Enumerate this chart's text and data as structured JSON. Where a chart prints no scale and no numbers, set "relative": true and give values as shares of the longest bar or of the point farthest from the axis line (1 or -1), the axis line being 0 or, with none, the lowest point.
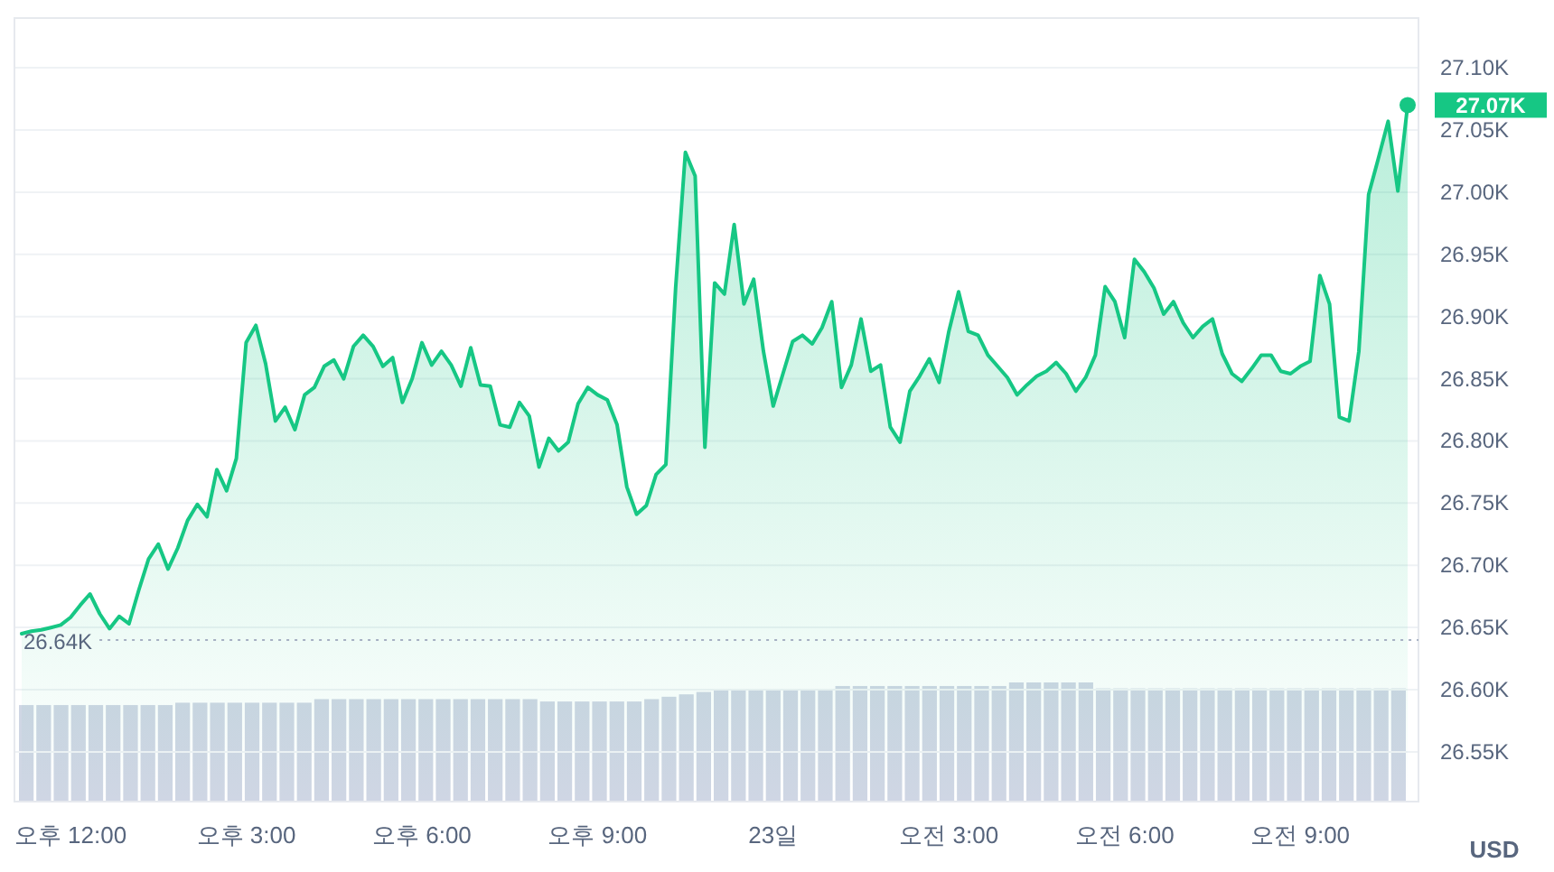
{
  "chart_data": [
    {
      "type": "area",
      "ylabel": "USD",
      "grid": "y",
      "categories": [
        null,
        null,
        null,
        null,
        null,
        "오후 12:00",
        null,
        null,
        null,
        null,
        null,
        null,
        null,
        null,
        null,
        null,
        null,
        null,
        null,
        null,
        null,
        null,
        null,
        "오후 3:00",
        null,
        null,
        null,
        null,
        null,
        null,
        null,
        null,
        null,
        null,
        null,
        null,
        null,
        null,
        null,
        null,
        null,
        "오후 6:00",
        null,
        null,
        null,
        null,
        null,
        null,
        null,
        null,
        null,
        null,
        null,
        null,
        null,
        null,
        null,
        null,
        null,
        "오후 9:00",
        null,
        null,
        null,
        null,
        null,
        null,
        null,
        null,
        null,
        null,
        null,
        null,
        null,
        null,
        null,
        null,
        null,
        "23일",
        null,
        null,
        null,
        null,
        null,
        null,
        null,
        null,
        null,
        null,
        null,
        null,
        null,
        null,
        null,
        null,
        null,
        "오전 3:00",
        null,
        null,
        null,
        null,
        null,
        null,
        null,
        null,
        null,
        null,
        null,
        null,
        null,
        null,
        null,
        null,
        null,
        "오전 6:00",
        null,
        null,
        null,
        null,
        null,
        null,
        null,
        null,
        null,
        null,
        null,
        null,
        null,
        null,
        null,
        null,
        null,
        "오전 9:00",
        null,
        null,
        null,
        null,
        null,
        null,
        null,
        null,
        null,
        null,
        null
      ],
      "series": [
        {
          "color": "#16c784",
          "values": [
            26.645,
            26.647,
            26.648,
            26.65,
            26.652,
            26.658,
            26.668,
            26.677,
            26.661,
            26.649,
            26.659,
            26.653,
            26.68,
            26.705,
            26.717,
            26.697,
            26.714,
            26.736,
            26.749,
            26.739,
            26.777,
            26.76,
            26.786,
            26.879,
            26.893,
            26.862,
            26.816,
            26.827,
            26.809,
            26.837,
            26.843,
            26.86,
            26.865,
            26.85,
            26.876,
            26.885,
            26.876,
            26.86,
            26.867,
            26.831,
            26.85,
            26.879,
            26.861,
            26.872,
            26.861,
            26.844,
            26.875,
            26.845,
            26.844,
            26.813,
            26.811,
            26.831,
            26.82,
            26.779,
            26.802,
            26.792,
            26.799,
            26.83,
            26.843,
            26.837,
            26.833,
            26.813,
            26.763,
            26.741,
            26.748,
            26.773,
            26.781,
            26.923,
            27.032,
            27.013,
            26.795,
            26.927,
            26.918,
            26.974,
            26.91,
            26.93,
            26.872,
            26.828,
            26.854,
            26.88,
            26.885,
            26.878,
            26.891,
            26.912,
            26.843,
            26.861,
            26.898,
            26.856,
            26.861,
            26.811,
            26.799,
            26.84,
            26.852,
            26.866,
            26.847,
            26.888,
            26.92,
            26.888,
            26.885,
            26.869,
            26.86,
            26.851,
            26.837,
            26.845,
            26.852,
            26.856,
            26.863,
            26.854,
            26.84,
            26.851,
            26.869,
            26.924,
            26.912,
            26.883,
            26.946,
            26.936,
            26.923,
            26.902,
            26.912,
            26.895,
            26.883,
            26.892,
            26.898,
            26.87,
            26.854,
            26.848,
            26.858,
            26.869,
            26.869,
            26.856,
            26.854,
            26.86,
            26.864,
            26.933,
            26.91,
            26.819,
            26.816,
            26.872,
            26.998,
            27.027,
            27.057,
            27.001,
            27.07
          ]
        }
      ],
      "ylim": [
        26.51,
        27.14
      ],
      "yticks": [
        {
          "value": 26.55,
          "label": "26.55K"
        },
        {
          "value": 26.6,
          "label": "26.60K"
        },
        {
          "value": 26.65,
          "label": "26.65K"
        },
        {
          "value": 26.7,
          "label": "26.70K"
        },
        {
          "value": 26.75,
          "label": "26.75K"
        },
        {
          "value": 26.8,
          "label": "26.80K"
        },
        {
          "value": 26.85,
          "label": "26.85K"
        },
        {
          "value": 26.9,
          "label": "26.90K"
        },
        {
          "value": 26.95,
          "label": "26.95K"
        },
        {
          "value": 27.0,
          "label": "27.00K"
        },
        {
          "value": 27.05,
          "label": "27.05K"
        },
        {
          "value": 27.1,
          "label": "27.10K"
        }
      ],
      "ref_lines": [
        {
          "axis": "y",
          "value": 26.64,
          "label": "26.64K",
          "color": "#a6b0c3",
          "line_style": "dotted"
        }
      ],
      "annotations": [
        "27.07K"
      ]
    },
    {
      "type": "bar",
      "relative": true,
      "tick_labels": false,
      "color": "#cfd6e4",
      "categories": [
        null,
        null,
        null,
        null,
        null,
        null,
        null,
        null,
        null,
        null,
        null,
        null,
        null,
        null,
        null,
        null,
        null,
        null,
        null,
        null,
        null,
        null,
        null,
        null,
        null,
        null,
        null,
        null,
        null,
        null,
        null,
        null,
        null,
        null,
        null,
        null,
        null,
        null,
        null,
        null,
        null,
        null,
        null,
        null,
        null,
        null,
        null,
        null,
        null,
        null,
        null,
        null,
        null,
        null,
        null,
        null,
        null,
        null,
        null,
        null,
        null,
        null,
        null,
        null,
        null,
        null,
        null,
        null,
        null,
        null,
        null,
        null,
        null,
        null,
        null,
        null,
        null,
        null,
        null,
        null
      ],
      "values": [
        0.81,
        0.81,
        0.81,
        0.81,
        0.81,
        0.81,
        0.81,
        0.81,
        0.81,
        0.83,
        0.83,
        0.83,
        0.83,
        0.83,
        0.83,
        0.83,
        0.83,
        0.86,
        0.86,
        0.86,
        0.86,
        0.86,
        0.86,
        0.86,
        0.86,
        0.86,
        0.86,
        0.86,
        0.86,
        0.86,
        0.84,
        0.84,
        0.84,
        0.84,
        0.84,
        0.84,
        0.86,
        0.88,
        0.9,
        0.92,
        0.94,
        0.94,
        0.94,
        0.94,
        0.94,
        0.94,
        0.94,
        0.97,
        0.97,
        0.97,
        0.97,
        0.97,
        0.97,
        0.97,
        0.97,
        0.97,
        0.97,
        1,
        1,
        1,
        1,
        1,
        0.95,
        0.95,
        0.95,
        0.95,
        0.95,
        0.95,
        0.95,
        0.95,
        0.95,
        0.95,
        0.95,
        0.95,
        0.95,
        0.95,
        0.95,
        0.95,
        0.95,
        0.95
      ]
    }
  ]
}
